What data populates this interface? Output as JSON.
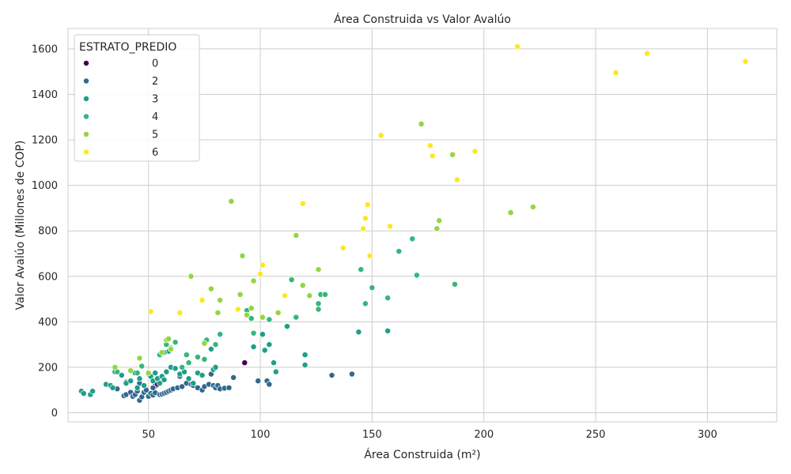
{
  "chart_data": {
    "type": "scatter",
    "title": "Área Construida vs Valor Avalúo",
    "xlabel": "Área Construida (m²)",
    "ylabel": "Valor Avalúo (Millones de COP)",
    "xlim": [
      14,
      331
    ],
    "ylim": [
      -40,
      1690
    ],
    "xticks": [
      50,
      100,
      150,
      200,
      250,
      300
    ],
    "yticks": [
      0,
      200,
      400,
      600,
      800,
      1000,
      1200,
      1400,
      1600
    ],
    "grid": true,
    "legend": {
      "title": "ESTRATO_PREDIO",
      "placement": "top-left",
      "entries": [
        {
          "label": "0",
          "color": "#440154"
        },
        {
          "label": "2",
          "color": "#31688e"
        },
        {
          "label": "3",
          "color": "#1f9e89"
        },
        {
          "label": "4",
          "color": "#35b779"
        },
        {
          "label": "5",
          "color": "#90d743"
        },
        {
          "label": "6",
          "color": "#fde725"
        }
      ]
    },
    "series": [
      {
        "name": "0",
        "color": "#440154",
        "points": [
          [
            53,
            118
          ],
          [
            54,
            125
          ],
          [
            93,
            220
          ]
        ]
      },
      {
        "name": "2",
        "color": "#31688e",
        "points": [
          [
            39,
            75
          ],
          [
            40,
            80
          ],
          [
            42,
            90
          ],
          [
            43,
            72
          ],
          [
            44,
            80
          ],
          [
            45,
            95
          ],
          [
            46,
            55
          ],
          [
            47,
            70
          ],
          [
            48,
            90
          ],
          [
            49,
            100
          ],
          [
            50,
            72
          ],
          [
            51,
            85
          ],
          [
            52,
            78
          ],
          [
            53,
            88
          ],
          [
            55,
            80
          ],
          [
            56,
            82
          ],
          [
            57,
            86
          ],
          [
            58,
            90
          ],
          [
            59,
            95
          ],
          [
            60,
            100
          ],
          [
            61,
            105
          ],
          [
            63,
            110
          ],
          [
            65,
            115
          ],
          [
            67,
            130
          ],
          [
            69,
            125
          ],
          [
            70,
            120
          ],
          [
            72,
            110
          ],
          [
            74,
            100
          ],
          [
            75,
            115
          ],
          [
            77,
            125
          ],
          [
            78,
            170
          ],
          [
            79,
            120
          ],
          [
            80,
            110
          ],
          [
            81,
            120
          ],
          [
            82,
            105
          ],
          [
            84,
            108
          ],
          [
            86,
            110
          ],
          [
            88,
            155
          ],
          [
            99,
            140
          ],
          [
            103,
            140
          ],
          [
            104,
            125
          ],
          [
            132,
            165
          ],
          [
            141,
            170
          ],
          [
            46,
            130
          ],
          [
            52,
            110
          ],
          [
            64,
            160
          ],
          [
            40,
            135
          ],
          [
            36,
            105
          ]
        ]
      },
      {
        "name": "3",
        "color": "#1f9e89",
        "points": [
          [
            20,
            95
          ],
          [
            21,
            85
          ],
          [
            24,
            80
          ],
          [
            25,
            95
          ],
          [
            31,
            125
          ],
          [
            33,
            120
          ],
          [
            34,
            110
          ],
          [
            35,
            180
          ],
          [
            38,
            165
          ],
          [
            40,
            130
          ],
          [
            42,
            140
          ],
          [
            44,
            175
          ],
          [
            45,
            110
          ],
          [
            46,
            150
          ],
          [
            48,
            120
          ],
          [
            50,
            170
          ],
          [
            51,
            160
          ],
          [
            52,
            140
          ],
          [
            53,
            175
          ],
          [
            54,
            150
          ],
          [
            55,
            130
          ],
          [
            56,
            160
          ],
          [
            57,
            145
          ],
          [
            58,
            180
          ],
          [
            59,
            270
          ],
          [
            60,
            200
          ],
          [
            62,
            195
          ],
          [
            64,
            170
          ],
          [
            66,
            180
          ],
          [
            68,
            150
          ],
          [
            70,
            130
          ],
          [
            72,
            175
          ],
          [
            74,
            165
          ],
          [
            75,
            310
          ],
          [
            78,
            280
          ],
          [
            79,
            190
          ],
          [
            80,
            200
          ],
          [
            97,
            290
          ],
          [
            101,
            345
          ],
          [
            102,
            275
          ],
          [
            104,
            300
          ],
          [
            106,
            220
          ],
          [
            107,
            180
          ],
          [
            112,
            380
          ],
          [
            120,
            210
          ],
          [
            120,
            255
          ],
          [
            144,
            355
          ],
          [
            157,
            360
          ]
        ]
      },
      {
        "name": "4",
        "color": "#35b779",
        "points": [
          [
            36,
            180
          ],
          [
            45,
            175
          ],
          [
            47,
            205
          ],
          [
            55,
            255
          ],
          [
            57,
            265
          ],
          [
            58,
            300
          ],
          [
            60,
            285
          ],
          [
            62,
            310
          ],
          [
            65,
            200
          ],
          [
            67,
            255
          ],
          [
            68,
            220
          ],
          [
            72,
            245
          ],
          [
            75,
            235
          ],
          [
            76,
            320
          ],
          [
            80,
            300
          ],
          [
            82,
            345
          ],
          [
            94,
            450
          ],
          [
            96,
            415
          ],
          [
            97,
            350
          ],
          [
            104,
            410
          ],
          [
            114,
            585
          ],
          [
            116,
            420
          ],
          [
            126,
            480
          ],
          [
            126,
            455
          ],
          [
            127,
            520
          ],
          [
            129,
            520
          ],
          [
            145,
            630
          ],
          [
            147,
            480
          ],
          [
            150,
            550
          ],
          [
            157,
            505
          ],
          [
            162,
            710
          ],
          [
            168,
            765
          ],
          [
            170,
            605
          ],
          [
            187,
            565
          ]
        ]
      },
      {
        "name": "5",
        "color": "#90d743",
        "points": [
          [
            35,
            200
          ],
          [
            42,
            185
          ],
          [
            46,
            240
          ],
          [
            50,
            175
          ],
          [
            56,
            265
          ],
          [
            58,
            320
          ],
          [
            59,
            325
          ],
          [
            60,
            280
          ],
          [
            69,
            600
          ],
          [
            75,
            305
          ],
          [
            78,
            545
          ],
          [
            81,
            440
          ],
          [
            82,
            495
          ],
          [
            87,
            930
          ],
          [
            91,
            520
          ],
          [
            92,
            690
          ],
          [
            94,
            430
          ],
          [
            96,
            460
          ],
          [
            97,
            580
          ],
          [
            101,
            420
          ],
          [
            108,
            440
          ],
          [
            116,
            780
          ],
          [
            119,
            560
          ],
          [
            122,
            515
          ],
          [
            126,
            630
          ],
          [
            172,
            1270
          ],
          [
            180,
            845
          ],
          [
            186,
            1135
          ],
          [
            179,
            810
          ],
          [
            212,
            880
          ],
          [
            222,
            905
          ]
        ]
      },
      {
        "name": "6",
        "color": "#fde725",
        "points": [
          [
            51,
            445
          ],
          [
            64,
            440
          ],
          [
            74,
            495
          ],
          [
            90,
            455
          ],
          [
            100,
            610
          ],
          [
            101,
            650
          ],
          [
            111,
            515
          ],
          [
            119,
            920
          ],
          [
            137,
            725
          ],
          [
            146,
            810
          ],
          [
            147,
            855
          ],
          [
            148,
            915
          ],
          [
            149,
            690
          ],
          [
            154,
            1220
          ],
          [
            158,
            820
          ],
          [
            176,
            1175
          ],
          [
            177,
            1130
          ],
          [
            188,
            1025
          ],
          [
            196,
            1150
          ],
          [
            215,
            1610
          ],
          [
            259,
            1495
          ],
          [
            273,
            1580
          ],
          [
            317,
            1545
          ]
        ]
      }
    ]
  }
}
